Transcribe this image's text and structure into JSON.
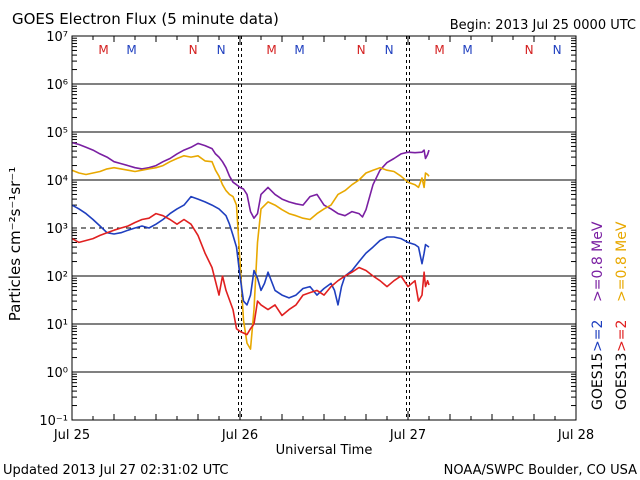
{
  "chart_data": {
    "type": "line",
    "title": "GOES Electron Flux (5 minute data)",
    "begin_label": "Begin: 2013 Jul 25 0000 UTC",
    "xlabel": "Universal Time",
    "ylabel": "Particles cm⁻²s⁻¹sr⁻¹",
    "updated": "Updated 2013 Jul 27 02:31:02 UTC",
    "source": "NOAA/SWPC Boulder, CO USA",
    "x_unit": "hours since 2013 Jul 25 0000 UTC",
    "xlim": [
      0,
      72
    ],
    "x_ticks": [
      {
        "x": 0,
        "label": "Jul 25"
      },
      {
        "x": 24,
        "label": "Jul 26"
      },
      {
        "x": 48,
        "label": "Jul 27"
      },
      {
        "x": 72,
        "label": "Jul 28"
      }
    ],
    "y_scale": "log",
    "ylim_exponents": [
      -1,
      7
    ],
    "y_tick_labels": [
      "10⁻¹",
      "10⁰",
      "10¹",
      "10²",
      "10³",
      "10⁴",
      "10⁵",
      "10⁶",
      "10⁷"
    ],
    "threshold_level": 1000,
    "day_markers": [
      24,
      48
    ],
    "mn_markers": [
      {
        "x": 4.5,
        "label": "M",
        "color": "#d42020"
      },
      {
        "x": 8.5,
        "label": "M",
        "color": "#1f3fbf"
      },
      {
        "x": 17.3,
        "label": "N",
        "color": "#d42020"
      },
      {
        "x": 21.3,
        "label": "N",
        "color": "#1f3fbf"
      },
      {
        "x": 28.5,
        "label": "M",
        "color": "#d42020"
      },
      {
        "x": 32.5,
        "label": "M",
        "color": "#1f3fbf"
      },
      {
        "x": 41.3,
        "label": "N",
        "color": "#d42020"
      },
      {
        "x": 45.3,
        "label": "N",
        "color": "#1f3fbf"
      },
      {
        "x": 52.5,
        "label": "M",
        "color": "#d42020"
      },
      {
        "x": 56.5,
        "label": "M",
        "color": "#1f3fbf"
      },
      {
        "x": 65.3,
        "label": "N",
        "color": "#d42020"
      },
      {
        "x": 69.3,
        "label": "N",
        "color": "#1f3fbf"
      }
    ],
    "legend": [
      {
        "satellite": "GOES15",
        "items": [
          {
            "label": ">=2",
            "color": "#1f3fbf"
          },
          {
            "label": ">=0.8 MeV",
            "color": "#7a1fa2"
          }
        ]
      },
      {
        "satellite": "GOES13",
        "items": [
          {
            "label": ">=2",
            "color": "#e02020"
          },
          {
            "label": ">=0.8 MeV",
            "color": "#e8a800"
          }
        ]
      }
    ],
    "series": [
      {
        "name": "GOES15 >=0.8 MeV",
        "color": "#7a1fa2",
        "points": [
          [
            0,
            60000
          ],
          [
            1,
            55000
          ],
          [
            2,
            48000
          ],
          [
            3,
            42000
          ],
          [
            4,
            35000
          ],
          [
            5,
            30000
          ],
          [
            6,
            24000
          ],
          [
            7,
            22000
          ],
          [
            8,
            20000
          ],
          [
            9,
            18000
          ],
          [
            10,
            17000
          ],
          [
            11,
            18000
          ],
          [
            12,
            20000
          ],
          [
            13,
            24000
          ],
          [
            14,
            28000
          ],
          [
            15,
            35000
          ],
          [
            16,
            42000
          ],
          [
            17,
            48000
          ],
          [
            18,
            58000
          ],
          [
            19,
            52000
          ],
          [
            20,
            45000
          ],
          [
            20.5,
            35000
          ],
          [
            21,
            30000
          ],
          [
            21.5,
            24000
          ],
          [
            22,
            18000
          ],
          [
            22.5,
            12000
          ],
          [
            23,
            9000
          ],
          [
            23.5,
            8000
          ],
          [
            24,
            7000
          ],
          [
            24.5,
            6500
          ],
          [
            25,
            5000
          ],
          [
            25.5,
            2200
          ],
          [
            26,
            1600
          ],
          [
            26.5,
            2000
          ],
          [
            27,
            5000
          ],
          [
            28,
            7000
          ],
          [
            29,
            5000
          ],
          [
            30,
            4000
          ],
          [
            31,
            3500
          ],
          [
            32,
            3200
          ],
          [
            33,
            3000
          ],
          [
            34,
            4500
          ],
          [
            35,
            5000
          ],
          [
            36,
            3000
          ],
          [
            37,
            2500
          ],
          [
            38,
            2000
          ],
          [
            39,
            1800
          ],
          [
            40,
            2200
          ],
          [
            41,
            2000
          ],
          [
            41.5,
            1700
          ],
          [
            42,
            2400
          ],
          [
            43,
            8000
          ],
          [
            44,
            16000
          ],
          [
            45,
            23000
          ],
          [
            46,
            28000
          ],
          [
            47,
            35000
          ],
          [
            48,
            38000
          ],
          [
            49,
            37000
          ],
          [
            50,
            38000
          ],
          [
            50.3,
            42000
          ],
          [
            50.5,
            28000
          ],
          [
            50.8,
            34000
          ],
          [
            51,
            42000
          ]
        ]
      },
      {
        "name": "GOES13 >=0.8 MeV",
        "color": "#e8a800",
        "points": [
          [
            0,
            16000
          ],
          [
            1,
            14000
          ],
          [
            2,
            13000
          ],
          [
            3,
            14000
          ],
          [
            4,
            15000
          ],
          [
            5,
            17000
          ],
          [
            6,
            18000
          ],
          [
            7,
            17000
          ],
          [
            8,
            16000
          ],
          [
            9,
            15000
          ],
          [
            10,
            16000
          ],
          [
            11,
            17000
          ],
          [
            12,
            18000
          ],
          [
            13,
            20000
          ],
          [
            14,
            24000
          ],
          [
            15,
            28000
          ],
          [
            16,
            32000
          ],
          [
            17,
            30000
          ],
          [
            18,
            32000
          ],
          [
            19,
            25000
          ],
          [
            20,
            24000
          ],
          [
            20.5,
            16000
          ],
          [
            21,
            12000
          ],
          [
            21.5,
            8000
          ],
          [
            22,
            6000
          ],
          [
            22.5,
            5000
          ],
          [
            23,
            4500
          ],
          [
            23.5,
            3000
          ],
          [
            24,
            200
          ],
          [
            24.5,
            12
          ],
          [
            25,
            4
          ],
          [
            25.5,
            3
          ],
          [
            26,
            20
          ],
          [
            26.5,
            500
          ],
          [
            27,
            2500
          ],
          [
            28,
            3500
          ],
          [
            29,
            3000
          ],
          [
            30,
            2400
          ],
          [
            31,
            2000
          ],
          [
            32,
            1800
          ],
          [
            33,
            1600
          ],
          [
            34,
            1500
          ],
          [
            35,
            2000
          ],
          [
            36,
            2500
          ],
          [
            37,
            3000
          ],
          [
            38,
            5000
          ],
          [
            39,
            6000
          ],
          [
            40,
            8000
          ],
          [
            41,
            10000
          ],
          [
            42,
            14000
          ],
          [
            43,
            16000
          ],
          [
            44,
            18000
          ],
          [
            45,
            16000
          ],
          [
            46,
            15000
          ],
          [
            47,
            12000
          ],
          [
            48,
            9000
          ],
          [
            49,
            8000
          ],
          [
            49.5,
            7000
          ],
          [
            50,
            11000
          ],
          [
            50.3,
            7000
          ],
          [
            50.5,
            14000
          ],
          [
            50.8,
            13000
          ],
          [
            51,
            12000
          ]
        ]
      },
      {
        "name": "GOES15 >=2 MeV",
        "color": "#1f3fbf",
        "points": [
          [
            0,
            3000
          ],
          [
            1,
            2500
          ],
          [
            2,
            2000
          ],
          [
            3,
            1500
          ],
          [
            4,
            1100
          ],
          [
            5,
            800
          ],
          [
            6,
            750
          ],
          [
            7,
            800
          ],
          [
            8,
            900
          ],
          [
            9,
            1000
          ],
          [
            10,
            1100
          ],
          [
            11,
            1000
          ],
          [
            12,
            1200
          ],
          [
            13,
            1500
          ],
          [
            14,
            2000
          ],
          [
            15,
            2500
          ],
          [
            16,
            3000
          ],
          [
            17,
            4500
          ],
          [
            18,
            4000
          ],
          [
            19,
            3500
          ],
          [
            20,
            3000
          ],
          [
            21,
            2500
          ],
          [
            22,
            1800
          ],
          [
            22.5,
            1200
          ],
          [
            23,
            700
          ],
          [
            23.5,
            400
          ],
          [
            24,
            100
          ],
          [
            24.5,
            30
          ],
          [
            25,
            25
          ],
          [
            25.5,
            40
          ],
          [
            26,
            130
          ],
          [
            26.5,
            90
          ],
          [
            27,
            50
          ],
          [
            27.5,
            70
          ],
          [
            28,
            120
          ],
          [
            29,
            50
          ],
          [
            30,
            40
          ],
          [
            31,
            35
          ],
          [
            32,
            40
          ],
          [
            33,
            55
          ],
          [
            34,
            60
          ],
          [
            35,
            40
          ],
          [
            36,
            55
          ],
          [
            37,
            70
          ],
          [
            37.5,
            50
          ],
          [
            38,
            25
          ],
          [
            38.5,
            60
          ],
          [
            39,
            100
          ],
          [
            40,
            130
          ],
          [
            41,
            200
          ],
          [
            42,
            300
          ],
          [
            43,
            400
          ],
          [
            44,
            550
          ],
          [
            45,
            650
          ],
          [
            46,
            650
          ],
          [
            47,
            600
          ],
          [
            48,
            500
          ],
          [
            49,
            450
          ],
          [
            49.5,
            400
          ],
          [
            50,
            180
          ],
          [
            50.3,
            300
          ],
          [
            50.5,
            450
          ],
          [
            51,
            400
          ]
        ]
      },
      {
        "name": "GOES13 >=2 MeV",
        "color": "#e02020",
        "points": [
          [
            0,
            600
          ],
          [
            1,
            500
          ],
          [
            2,
            550
          ],
          [
            3,
            600
          ],
          [
            4,
            700
          ],
          [
            5,
            800
          ],
          [
            6,
            900
          ],
          [
            7,
            1000
          ],
          [
            8,
            1100
          ],
          [
            9,
            1300
          ],
          [
            10,
            1500
          ],
          [
            11,
            1600
          ],
          [
            12,
            2000
          ],
          [
            13,
            1800
          ],
          [
            14,
            1500
          ],
          [
            15,
            1200
          ],
          [
            16,
            1500
          ],
          [
            17,
            1200
          ],
          [
            18,
            700
          ],
          [
            19,
            300
          ],
          [
            20,
            150
          ],
          [
            21,
            40
          ],
          [
            21.5,
            100
          ],
          [
            22,
            50
          ],
          [
            23,
            20
          ],
          [
            23.5,
            8
          ],
          [
            24,
            7
          ],
          [
            25,
            6
          ],
          [
            25.5,
            8
          ],
          [
            26,
            10
          ],
          [
            26.5,
            30
          ],
          [
            27,
            25
          ],
          [
            28,
            20
          ],
          [
            29,
            25
          ],
          [
            30,
            15
          ],
          [
            31,
            20
          ],
          [
            32,
            25
          ],
          [
            33,
            40
          ],
          [
            34,
            45
          ],
          [
            35,
            50
          ],
          [
            36,
            40
          ],
          [
            37,
            60
          ],
          [
            38,
            80
          ],
          [
            39,
            100
          ],
          [
            40,
            120
          ],
          [
            41,
            150
          ],
          [
            42,
            130
          ],
          [
            43,
            100
          ],
          [
            44,
            80
          ],
          [
            45,
            60
          ],
          [
            46,
            80
          ],
          [
            47,
            100
          ],
          [
            48,
            60
          ],
          [
            49,
            80
          ],
          [
            49.5,
            30
          ],
          [
            50,
            40
          ],
          [
            50.3,
            120
          ],
          [
            50.5,
            60
          ],
          [
            50.8,
            80
          ],
          [
            51,
            65
          ]
        ]
      }
    ]
  }
}
